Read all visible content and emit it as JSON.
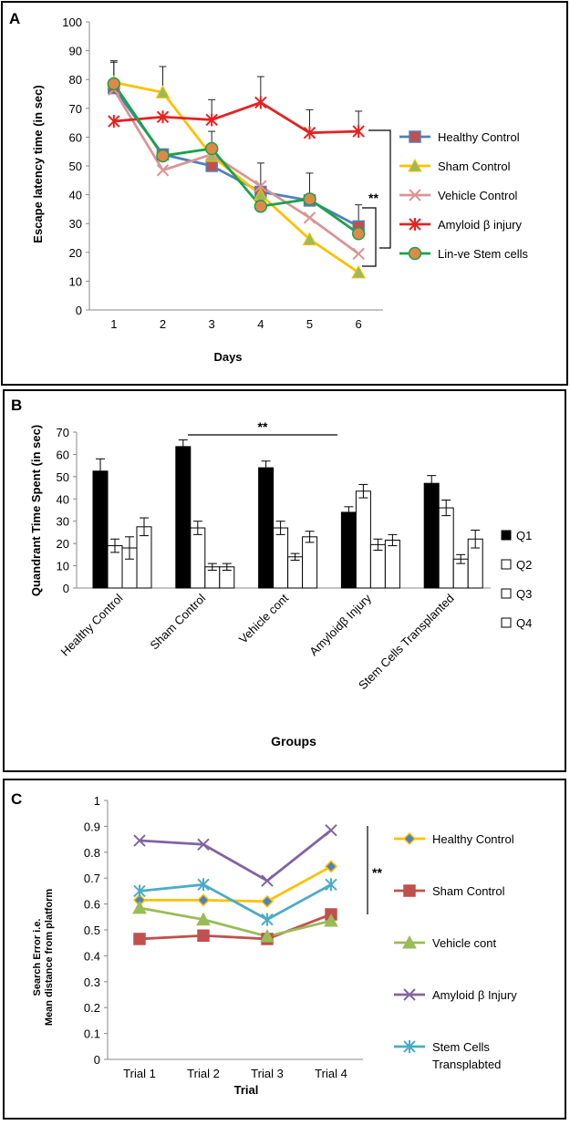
{
  "chart_data": [
    {
      "panel_letter": "A",
      "type": "line",
      "xlabel": "Days",
      "ylabel": "Escape latency time (in sec)",
      "ylim": [
        0,
        100
      ],
      "yticks": [
        "0",
        "10",
        "20",
        "30",
        "40",
        "50",
        "60",
        "70",
        "80",
        "90",
        "100"
      ],
      "categories": [
        "1",
        "2",
        "3",
        "4",
        "5",
        "6"
      ],
      "series": [
        {
          "name": "Healthy Control",
          "color": "#4F81BD",
          "marker": "square",
          "markerColor": "#C0504D",
          "values": [
            77,
            54,
            50,
            41,
            38,
            29
          ],
          "errors": [
            9,
            0,
            0,
            0,
            0,
            0
          ]
        },
        {
          "name": "Sham Control",
          "color": "#FFC000",
          "marker": "triangle",
          "markerColor": "#9BBB59",
          "values": [
            79,
            75.5,
            53.5,
            40,
            24.5,
            13
          ],
          "errors": [
            0,
            9,
            0,
            0,
            0,
            0
          ]
        },
        {
          "name": "Vehicle Control",
          "color": "#D99694",
          "marker": "x",
          "markerColor": "#D99694",
          "values": [
            76.5,
            48.5,
            54,
            43,
            32,
            19.5
          ],
          "errors": [
            0,
            0,
            0,
            0,
            0,
            0
          ]
        },
        {
          "name": "Amyloid β injury",
          "color": "#E52222",
          "marker": "star",
          "markerColor": "#E52222",
          "values": [
            65.5,
            67,
            66,
            72,
            61.5,
            62
          ],
          "errors": [
            0,
            0,
            7,
            9,
            8,
            7
          ]
        },
        {
          "name": "Lin-ve Stem cells",
          "color": "#1AA24A",
          "marker": "circle",
          "markerColor": "#E0884A",
          "values": [
            78.5,
            53.5,
            56,
            36,
            38.5,
            26.5
          ],
          "errors": [
            8,
            0,
            6,
            15,
            9,
            10
          ]
        }
      ],
      "annotation": "**"
    },
    {
      "panel_letter": "B",
      "type": "bar",
      "xlabel": "Groups",
      "ylabel": "Quandrant  Time Spent (in sec)",
      "ylim": [
        0,
        70
      ],
      "yticks": [
        "0",
        "10",
        "20",
        "30",
        "40",
        "50",
        "60",
        "70"
      ],
      "categories": [
        "Healthy Control",
        "Sham Control",
        "Vehicle cont",
        "Amyloidβ Injury",
        "Stem Cells Transplanted"
      ],
      "series": [
        {
          "name": "Q1",
          "fill": "#000000",
          "values": [
            52.5,
            63.5,
            54,
            34,
            47
          ],
          "errors": [
            5.5,
            3,
            3,
            2.5,
            3.5
          ]
        },
        {
          "name": "Q2",
          "fill": "#FFFFFF",
          "values": [
            19,
            27,
            27,
            43.5,
            36
          ],
          "errors": [
            3,
            3,
            3,
            3,
            3.5
          ]
        },
        {
          "name": "Q3",
          "fill": "#FFFFFF",
          "values": [
            18,
            9.5,
            14,
            19.5,
            13
          ],
          "errors": [
            5,
            1.5,
            1.5,
            2.5,
            2
          ]
        },
        {
          "name": "Q4",
          "fill": "#FFFFFF",
          "values": [
            27.5,
            9.5,
            23,
            21.5,
            22
          ],
          "errors": [
            4,
            1.5,
            2.5,
            2.5,
            4
          ]
        }
      ],
      "annotation": "**"
    },
    {
      "panel_letter": "C",
      "type": "line",
      "xlabel": "Trial",
      "ylabel_line1": "Search Error i.e.",
      "ylabel_line2": "Mean distance from platform",
      "ylim": [
        0,
        1
      ],
      "yticks": [
        "0",
        "0.1",
        "0.2",
        "0.3",
        "0.4",
        "0.5",
        "0.6",
        "0.7",
        "0.8",
        "0.9",
        "1"
      ],
      "categories": [
        "Trial 1",
        "Trial 2",
        "Trial 3",
        "Trial 4"
      ],
      "series": [
        {
          "name": "Healthy Control",
          "color": "#FFC000",
          "marker": "diamond",
          "markerColor": "#4F81BD",
          "values": [
            0.615,
            0.615,
            0.61,
            0.745
          ]
        },
        {
          "name": "Sham Control",
          "color": "#C0504D",
          "marker": "square",
          "markerColor": "#C0504D",
          "values": [
            0.465,
            0.478,
            0.465,
            0.56
          ]
        },
        {
          "name": "Vehicle cont",
          "color": "#9BBB59",
          "marker": "triangle",
          "markerColor": "#9BBB59",
          "values": [
            0.585,
            0.54,
            0.475,
            0.535
          ]
        },
        {
          "name": "Amyloid β Injury",
          "color": "#8064A2",
          "marker": "x",
          "markerColor": "#8064A2",
          "values": [
            0.845,
            0.83,
            0.69,
            0.885
          ]
        },
        {
          "name": "Stem Cells Transplabted",
          "color": "#4BACC6",
          "marker": "star",
          "markerColor": "#4BACC6",
          "values": [
            0.65,
            0.675,
            0.54,
            0.675
          ]
        }
      ],
      "legend_name_line1": "Stem Cells",
      "legend_name_line2": "Transplabted",
      "annotation": "**"
    }
  ]
}
